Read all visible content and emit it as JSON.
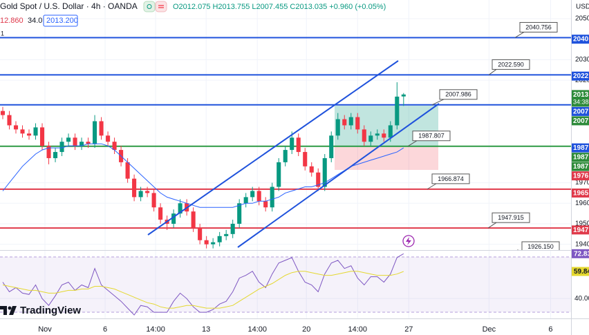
{
  "header": {
    "title": "Gold Spot / U.S. Dollar · 4h · OANDA",
    "ohlc": "O2012.075 H2013.755 L2007.455 C2013.035 +0.960 (+0.05%)",
    "indicator_values": [
      "12.860",
      "34.0",
      "2013.200"
    ],
    "pane_number": "1"
  },
  "currency": "USD",
  "brand": "TradingView",
  "chart_data": [
    {
      "type": "candlestick",
      "open": [
        2005,
        2003,
        1998,
        1996,
        1994,
        1993,
        1997,
        1988,
        1982,
        1985,
        1990,
        1992,
        1988,
        1990,
        1989,
        2000,
        1993,
        1990,
        1986,
        1980,
        1972,
        1963,
        1966,
        1965,
        1958,
        1952,
        1950,
        1955,
        1960,
        1956,
        1948,
        1942,
        1940,
        1941,
        1944,
        1945,
        1950,
        1960,
        1963,
        1966,
        1961,
        1958,
        1968,
        1980,
        1986,
        1992,
        1985,
        1978,
        1975,
        1968,
        1982,
        1993,
        2001,
        1998,
        2002,
        1996,
        1990,
        1993,
        1994,
        1992,
        1998,
        2012.075
      ],
      "high": [
        2007,
        2005,
        2000,
        1998,
        1996,
        1999,
        1999,
        1990,
        1987,
        1992,
        1994,
        1994,
        1992,
        1992,
        2003,
        2002,
        1995,
        1992,
        1988,
        1982,
        1974,
        1968,
        1968,
        1967,
        1960,
        1954,
        1957,
        1962,
        1962,
        1958,
        1950,
        1944,
        1943,
        1946,
        1947,
        1952,
        1962,
        1965,
        1968,
        1968,
        1963,
        1970,
        1982,
        1988,
        1995,
        1994,
        1987,
        1980,
        1977,
        1984,
        1995,
        2004,
        2003,
        2004,
        2004,
        1998,
        1995,
        1996,
        1996,
        2000,
        2019,
        2013.755
      ],
      "low": [
        2001,
        1996,
        1994,
        1992,
        1991,
        1991,
        1986,
        1979,
        1980,
        1983,
        1988,
        1986,
        1986,
        1987,
        1987,
        1991,
        1988,
        1984,
        1978,
        1970,
        1961,
        1961,
        1963,
        1956,
        1950,
        1947,
        1948,
        1953,
        1954,
        1946,
        1940,
        1938,
        1938,
        1939,
        1942,
        1943,
        1948,
        1958,
        1961,
        1959,
        1956,
        1956,
        1966,
        1978,
        1984,
        1983,
        1976,
        1973,
        1966,
        1966,
        1980,
        1991,
        1996,
        1996,
        1994,
        1988,
        1988,
        1991,
        1990,
        1990,
        1996,
        2007.455
      ],
      "close": [
        2003,
        1998,
        1996,
        1994,
        1993,
        1997,
        1988,
        1982,
        1985,
        1990,
        1992,
        1988,
        1990,
        1989,
        2000,
        1993,
        1990,
        1986,
        1980,
        1972,
        1963,
        1966,
        1965,
        1958,
        1952,
        1950,
        1955,
        1960,
        1956,
        1948,
        1942,
        1940,
        1941,
        1944,
        1945,
        1950,
        1960,
        1963,
        1966,
        1961,
        1958,
        1968,
        1980,
        1986,
        1992,
        1985,
        1978,
        1975,
        1968,
        1982,
        1993,
        2001,
        1998,
        2002,
        1996,
        1990,
        1993,
        1994,
        1992,
        1998,
        2012,
        2013.035
      ],
      "up_color": "#089981",
      "down_color": "#f23645",
      "series": [
        {
          "color": "#2962ff",
          "values": [
            1966,
            1970,
            1974,
            1978,
            1981,
            1984,
            1986,
            1987,
            1987,
            1987,
            1988,
            1988,
            1988,
            1989,
            1989,
            1989,
            1988,
            1986,
            1983,
            1980,
            1977,
            1974,
            1971,
            1968,
            1965,
            1963,
            1962,
            1961,
            1960,
            1959,
            1958,
            1958,
            1958,
            1958,
            1958,
            1958,
            1959,
            1960,
            1960,
            1961,
            1961,
            1962,
            1963,
            1965,
            1966,
            1967,
            1968,
            1968,
            1969,
            1970,
            1972,
            1974,
            1976,
            1978,
            1979,
            1980,
            1981,
            1982,
            1983,
            1984,
            1985,
            1987
          ]
        }
      ],
      "xlim": [
        -0.42,
        86.48
      ],
      "ylim": [
        1937.2,
        2059.1
      ],
      "yticks": [
        2050,
        2030,
        2020,
        1970,
        1960,
        1950,
        1940
      ],
      "xticks": [
        {
          "value": 6.42,
          "label": "Nov"
        },
        {
          "value": 15.58,
          "label": "6"
        },
        {
          "value": 23.26,
          "label": "14:00"
        },
        {
          "value": 30.95,
          "label": "13"
        },
        {
          "value": 38.74,
          "label": "14:00"
        },
        {
          "value": 46.21,
          "label": "20"
        },
        {
          "value": 54.0,
          "label": "14:00"
        },
        {
          "value": 61.79,
          "label": "27"
        },
        {
          "value": 74.0,
          "label": "Dec"
        },
        {
          "value": 83.37,
          "label": "6"
        }
      ],
      "grid": true,
      "levels": {
        "values": [
          2040.756,
          2022.59,
          2007.986,
          1987.807,
          1966.874,
          1947.915,
          1926.15
        ],
        "value_labels": [
          "2040.756",
          "2022.590",
          "2007.986",
          "1987.807",
          "1966.874",
          "1947.915",
          "1926.150"
        ],
        "colors": [
          "#1f52dc",
          "#1f52dc",
          "#1f52dc",
          "#2e9a44",
          "#e0394a",
          "#e0394a",
          "#e0394a"
        ]
      },
      "price_tags": {
        "values": [
          2040,
          2022,
          2013,
          2007,
          2007,
          1987,
          1987,
          1987,
          1976,
          1965,
          1947
        ],
        "colors": [
          "#1f52dc",
          "#1f52dc",
          "#2e8b3a",
          "#1f52dc",
          "#2e8b3a",
          "#1f52dc",
          "#2e8b3a",
          "#2e8b3a",
          "#e0394a",
          "#e0394a",
          "#e0394a"
        ],
        "countdown": "34:38"
      }
    },
    {
      "type": "line",
      "series": [
        {
          "color": "#7e57c2",
          "values": [
            52,
            45,
            48,
            44,
            43,
            50,
            40,
            35,
            42,
            50,
            52,
            46,
            50,
            48,
            62,
            50,
            46,
            42,
            38,
            33,
            28,
            35,
            34,
            30,
            30,
            30,
            38,
            44,
            40,
            34,
            30,
            30,
            32,
            36,
            38,
            45,
            55,
            57,
            60,
            52,
            48,
            58,
            66,
            68,
            70,
            60,
            52,
            50,
            45,
            58,
            66,
            68,
            62,
            64,
            55,
            50,
            56,
            56,
            52,
            58,
            70,
            72.83
          ]
        },
        {
          "color": "#e4d82f",
          "values": [
            50,
            49,
            48,
            47,
            46,
            46,
            45,
            44,
            44,
            45,
            46,
            46,
            47,
            47,
            49,
            49,
            48,
            47,
            45,
            43,
            41,
            39,
            37,
            36,
            34,
            33,
            33,
            34,
            35,
            35,
            34,
            33,
            33,
            33,
            34,
            35,
            38,
            41,
            44,
            47,
            49,
            51,
            54,
            57,
            59,
            60,
            60,
            59,
            58,
            57,
            57,
            58,
            59,
            60,
            60,
            59,
            58,
            57,
            57,
            57,
            58,
            59.84
          ]
        }
      ],
      "xlim": [
        -0.42,
        86.48
      ],
      "ylim": [
        26,
        75
      ],
      "yticks": [
        {
          "value": 40,
          "label": "40.00"
        }
      ],
      "grid": true
    }
  ]
}
